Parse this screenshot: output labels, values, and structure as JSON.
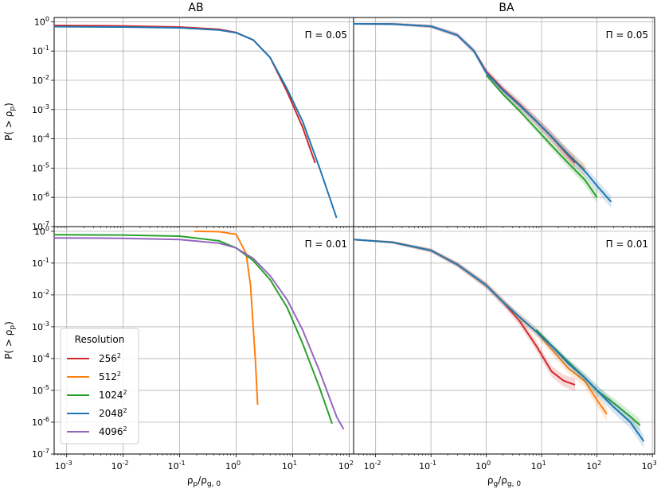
{
  "chart_data": {
    "type": "line",
    "xscale": "log",
    "yscale": "log",
    "ylim": [
      1e-07,
      1.4
    ],
    "ylabel": "P( > ρp)",
    "ylabel_main": "P( > ρ",
    "ylabel_sub": "p",
    "ylabel_end": ")",
    "col_titles": [
      "AB",
      "BA"
    ],
    "xlabels": [
      {
        "main": "ρ",
        "sub1": "p",
        "mid": "/ρ",
        "sub2": "g, 0"
      },
      {
        "main": "ρ",
        "sub1": "g",
        "mid": "/ρ",
        "sub2": "g, 0"
      }
    ],
    "xlim": [
      [
        0.0006,
        120
      ],
      [
        0.004,
        1100
      ]
    ],
    "x_ticks": [
      [
        "10",
        "10",
        "10",
        "10",
        "10",
        "10"
      ],
      [
        "10",
        "10",
        "10",
        "10",
        "10",
        "10"
      ]
    ],
    "x_tick_exps": [
      [
        "-3",
        "-2",
        "-1",
        "0",
        "1",
        "2"
      ],
      [
        "-2",
        "-1",
        "0",
        "1",
        "2",
        "3"
      ]
    ],
    "y_ticks": [
      "10",
      "10",
      "10",
      "10",
      "10",
      "10",
      "10",
      "10"
    ],
    "y_tick_exps": [
      "0",
      "-1",
      "-2",
      "-3",
      "-4",
      "-5",
      "-6",
      "-7"
    ],
    "grid": true,
    "legend": {
      "title": "Resolution",
      "placement": "lower-left",
      "entries": [
        {
          "base": "256",
          "exp": "2",
          "color": "#d62728"
        },
        {
          "base": "512",
          "exp": "2",
          "color": "#ff7f0e"
        },
        {
          "base": "1024",
          "exp": "2",
          "color": "#2ca02c"
        },
        {
          "base": "2048",
          "exp": "2",
          "color": "#1f77b4"
        },
        {
          "base": "4096",
          "exp": "2",
          "color": "#9467bd"
        }
      ]
    },
    "panels": [
      {
        "id": "AB-0.05",
        "col": 0,
        "row": 0,
        "annotation": "Π = 0.05",
        "series": [
          {
            "res": "256",
            "color": "#d62728",
            "x": [
              0.0006,
              0.01,
              0.1,
              0.5,
              1,
              2,
              4,
              8,
              15,
              25
            ],
            "y": [
              0.75,
              0.72,
              0.66,
              0.55,
              0.43,
              0.24,
              0.06,
              0.004,
              0.00025,
              1.5e-05
            ]
          },
          {
            "res": "2048",
            "color": "#1f77b4",
            "x": [
              0.0006,
              0.01,
              0.1,
              0.5,
              1,
              2,
              4,
              8,
              15,
              30,
              60
            ],
            "y": [
              0.68,
              0.66,
              0.62,
              0.52,
              0.42,
              0.24,
              0.06,
              0.005,
              0.0004,
              1e-05,
              2e-07
            ]
          }
        ]
      },
      {
        "id": "BA-0.05",
        "col": 1,
        "row": 0,
        "annotation": "Π = 0.05",
        "series": [
          {
            "res": "256",
            "color": "#d62728",
            "x": [
              0.004,
              0.02,
              0.1,
              0.3,
              0.6,
              1,
              2,
              4,
              8,
              15,
              25,
              40
            ],
            "y": [
              0.85,
              0.84,
              0.7,
              0.35,
              0.1,
              0.02,
              0.005,
              0.0015,
              0.0004,
              0.00012,
              4e-05,
              1.5e-05
            ]
          },
          {
            "res": "512",
            "color": "#ff7f0e",
            "x": [
              1,
              2,
              4,
              8,
              15,
              30,
              60
            ],
            "y": [
              0.018,
              0.0045,
              0.0014,
              0.0004,
              0.00012,
              3e-05,
              9e-06
            ]
          },
          {
            "res": "1024",
            "color": "#2ca02c",
            "x": [
              1,
              2,
              4,
              8,
              15,
              30,
              60,
              100
            ],
            "y": [
              0.015,
              0.0033,
              0.0009,
              0.00022,
              6e-05,
              1.5e-05,
              4e-06,
              1e-06
            ]
          },
          {
            "res": "2048",
            "color": "#1f77b4",
            "x": [
              0.004,
              0.02,
              0.1,
              0.3,
              0.6,
              1,
              2,
              4,
              8,
              15,
              30,
              60,
              100,
              180
            ],
            "y": [
              0.85,
              0.84,
              0.7,
              0.35,
              0.1,
              0.018,
              0.0045,
              0.0014,
              0.0004,
              0.00012,
              3e-05,
              8e-06,
              2.5e-06,
              7e-07
            ]
          }
        ]
      },
      {
        "id": "AB-0.01",
        "col": 0,
        "row": 1,
        "annotation": "Π = 0.01",
        "series": [
          {
            "res": "512",
            "color": "#ff7f0e",
            "x": [
              0.18,
              0.5,
              1,
              1.5,
              1.8,
              2.0,
              2.2,
              2.4
            ],
            "y": [
              1.0,
              0.97,
              0.8,
              0.2,
              0.02,
              0.001,
              8e-05,
              3.5e-06
            ]
          },
          {
            "res": "1024",
            "color": "#2ca02c",
            "x": [
              0.0006,
              0.01,
              0.1,
              0.5,
              1,
              2,
              4,
              8,
              15,
              30,
              50
            ],
            "y": [
              0.78,
              0.76,
              0.7,
              0.5,
              0.3,
              0.12,
              0.03,
              0.004,
              0.0003,
              1.2e-05,
              9e-07
            ]
          },
          {
            "res": "4096",
            "color": "#9467bd",
            "x": [
              0.0006,
              0.01,
              0.1,
              0.5,
              1,
              2,
              4,
              8,
              15,
              30,
              60,
              80
            ],
            "y": [
              0.62,
              0.6,
              0.55,
              0.42,
              0.3,
              0.14,
              0.04,
              0.007,
              0.0008,
              4e-05,
              1.5e-06,
              6e-07
            ]
          }
        ]
      },
      {
        "id": "BA-0.01",
        "col": 1,
        "row": 1,
        "annotation": "Π = 0.01",
        "series": [
          {
            "res": "256",
            "color": "#d62728",
            "x": [
              0.004,
              0.02,
              0.1,
              0.3,
              1,
              2,
              4,
              8,
              15,
              25,
              40
            ],
            "y": [
              0.55,
              0.45,
              0.25,
              0.09,
              0.02,
              0.006,
              0.0015,
              0.00025,
              4e-05,
              2e-05,
              1.5e-05
            ]
          },
          {
            "res": "512",
            "color": "#ff7f0e",
            "x": [
              0.004,
              0.02,
              0.1,
              0.3,
              1,
              2,
              4,
              8,
              15,
              30,
              60,
              100,
              150
            ],
            "y": [
              0.55,
              0.45,
              0.25,
              0.09,
              0.02,
              0.006,
              0.002,
              0.0007,
              0.0002,
              5e-05,
              2e-05,
              5e-06,
              1.8e-06
            ]
          },
          {
            "res": "1024",
            "color": "#2ca02c",
            "x": [
              8,
              15,
              30,
              60,
              100,
              200,
              400,
              600
            ],
            "y": [
              0.0008,
              0.00026,
              8e-05,
              2.5e-05,
              1e-05,
              4e-06,
              1.5e-06,
              8e-07
            ]
          },
          {
            "res": "2048",
            "color": "#1f77b4",
            "x": [
              0.004,
              0.02,
              0.1,
              0.3,
              1,
              2,
              4,
              8,
              15,
              30,
              60,
              100,
              200,
              400,
              700
            ],
            "y": [
              0.55,
              0.45,
              0.25,
              0.09,
              0.02,
              0.006,
              0.002,
              0.0007,
              0.00025,
              7e-05,
              2.5e-05,
              1e-05,
              3e-06,
              1e-06,
              2.5e-07
            ]
          }
        ]
      }
    ]
  }
}
